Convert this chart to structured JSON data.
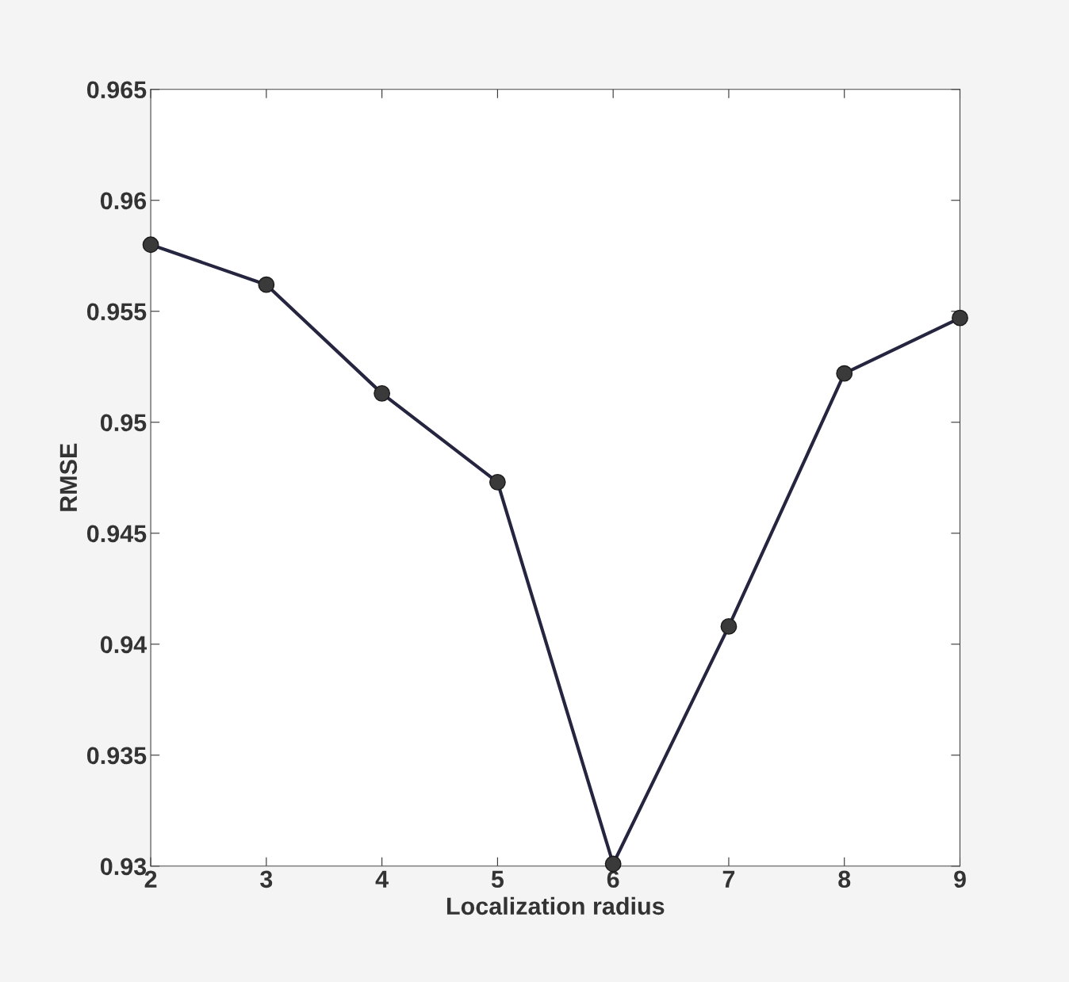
{
  "chart_data": {
    "type": "line",
    "xlabel": "Localization radius",
    "ylabel": "RMSE",
    "x": [
      2,
      3,
      4,
      5,
      6,
      7,
      8,
      9
    ],
    "series": [
      {
        "color": "#25253f",
        "values": [
          0.958,
          0.9562,
          0.9513,
          0.9473,
          0.9301,
          0.9408,
          0.9522,
          0.9547
        ]
      }
    ],
    "xlim": [
      2,
      9
    ],
    "xticks": [
      2,
      3,
      4,
      5,
      6,
      7,
      8,
      9
    ],
    "ylim": [
      0.93,
      0.965
    ],
    "yticks": [
      {
        "value": 0.93,
        "label": "0.93"
      },
      {
        "value": 0.935,
        "label": "0.935"
      },
      {
        "value": 0.94,
        "label": "0.94"
      },
      {
        "value": 0.945,
        "label": "0.945"
      },
      {
        "value": 0.95,
        "label": "0.95"
      },
      {
        "value": 0.955,
        "label": "0.955"
      },
      {
        "value": 0.96,
        "label": "0.96"
      },
      {
        "value": 0.965,
        "label": "0.965"
      }
    ],
    "grid": false,
    "marker": "circle",
    "line_style": "solid"
  }
}
